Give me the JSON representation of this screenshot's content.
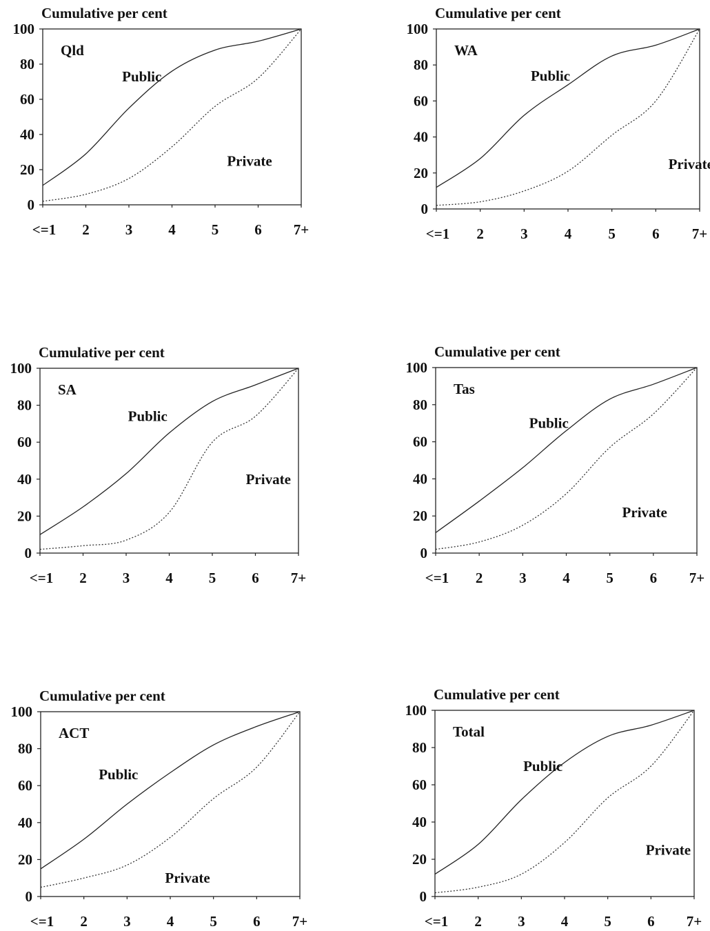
{
  "chart_data": [
    {
      "type": "line",
      "region": "Qld",
      "ylabel": "Cumulative per cent",
      "categories": [
        "<=1",
        "2",
        "3",
        "4",
        "5",
        "6",
        "7+"
      ],
      "yticks": [
        "0",
        "20",
        "40",
        "60",
        "80",
        "100"
      ],
      "ylim": [
        0,
        100
      ],
      "series": [
        {
          "name": "Public",
          "values": [
            11,
            29,
            55,
            76,
            88,
            93,
            100
          ],
          "style": "solid"
        },
        {
          "name": "Private",
          "values": [
            2,
            6,
            15,
            33,
            56,
            72,
            100
          ],
          "style": "dotted"
        }
      ],
      "annotations": {
        "public_at": [
          2.3,
          73
        ],
        "private_at": [
          4.8,
          25
        ]
      }
    },
    {
      "type": "line",
      "region": "WA",
      "ylabel": "Cumulative per cent",
      "categories": [
        "<=1",
        "2",
        "3",
        "4",
        "5",
        "6",
        "7+"
      ],
      "yticks": [
        "0",
        "20",
        "40",
        "60",
        "80",
        "100"
      ],
      "ylim": [
        0,
        100
      ],
      "series": [
        {
          "name": "Public",
          "values": [
            12,
            28,
            52,
            69,
            85,
            91,
            100
          ],
          "style": "solid"
        },
        {
          "name": "Private",
          "values": [
            2,
            4,
            10,
            21,
            41,
            60,
            100
          ],
          "style": "dotted"
        }
      ],
      "annotations": {
        "public_at": [
          2.6,
          74
        ],
        "private_at": [
          5.8,
          25
        ]
      }
    },
    {
      "type": "line",
      "region": "SA",
      "ylabel": "Cumulative per cent",
      "categories": [
        "<=1",
        "2",
        "3",
        "4",
        "5",
        "6",
        "7+"
      ],
      "yticks": [
        "0",
        "20",
        "40",
        "60",
        "80",
        "100"
      ],
      "ylim": [
        0,
        100
      ],
      "series": [
        {
          "name": "Public",
          "values": [
            10,
            25,
            43,
            65,
            82,
            91,
            100
          ],
          "style": "solid"
        },
        {
          "name": "Private",
          "values": [
            2,
            4,
            7,
            22,
            60,
            74,
            100
          ],
          "style": "dotted"
        }
      ],
      "annotations": {
        "public_at": [
          2.5,
          74
        ],
        "private_at": [
          5.3,
          40
        ]
      }
    },
    {
      "type": "line",
      "region": "Tas",
      "ylabel": "Cumulative per cent",
      "categories": [
        "<=1",
        "2",
        "3",
        "4",
        "5",
        "6",
        "7+"
      ],
      "yticks": [
        "0",
        "20",
        "40",
        "60",
        "80",
        "100"
      ],
      "ylim": [
        0,
        100
      ],
      "series": [
        {
          "name": "Public",
          "values": [
            11,
            28,
            46,
            66,
            83,
            91,
            100
          ],
          "style": "solid"
        },
        {
          "name": "Private",
          "values": [
            2,
            6,
            15,
            32,
            57,
            75,
            100
          ],
          "style": "dotted"
        }
      ],
      "annotations": {
        "public_at": [
          2.6,
          70
        ],
        "private_at": [
          4.8,
          22
        ]
      }
    },
    {
      "type": "line",
      "region": "ACT",
      "ylabel": "Cumulative per cent",
      "categories": [
        "<=1",
        "2",
        "3",
        "4",
        "5",
        "6",
        "7+"
      ],
      "yticks": [
        "0",
        "20",
        "40",
        "60",
        "80",
        "100"
      ],
      "ylim": [
        0,
        100
      ],
      "series": [
        {
          "name": "Public",
          "values": [
            15,
            31,
            50,
            67,
            82,
            92,
            100
          ],
          "style": "solid"
        },
        {
          "name": "Private",
          "values": [
            5,
            10,
            17,
            32,
            53,
            70,
            100
          ],
          "style": "dotted"
        }
      ],
      "annotations": {
        "public_at": [
          1.8,
          66
        ],
        "private_at": [
          3.4,
          10
        ]
      }
    },
    {
      "type": "line",
      "region": "Total",
      "ylabel": "Cumulative per cent",
      "categories": [
        "<=1",
        "2",
        "3",
        "4",
        "5",
        "6",
        "7+"
      ],
      "yticks": [
        "0",
        "20",
        "40",
        "60",
        "80",
        "100"
      ],
      "ylim": [
        0,
        100
      ],
      "series": [
        {
          "name": "Public",
          "values": [
            12,
            28,
            52,
            72,
            86,
            92,
            100
          ],
          "style": "solid"
        },
        {
          "name": "Private",
          "values": [
            2,
            5,
            12,
            29,
            53,
            70,
            100
          ],
          "style": "dotted"
        }
      ],
      "annotations": {
        "public_at": [
          2.5,
          70
        ],
        "private_at": [
          5.4,
          25
        ]
      }
    }
  ]
}
